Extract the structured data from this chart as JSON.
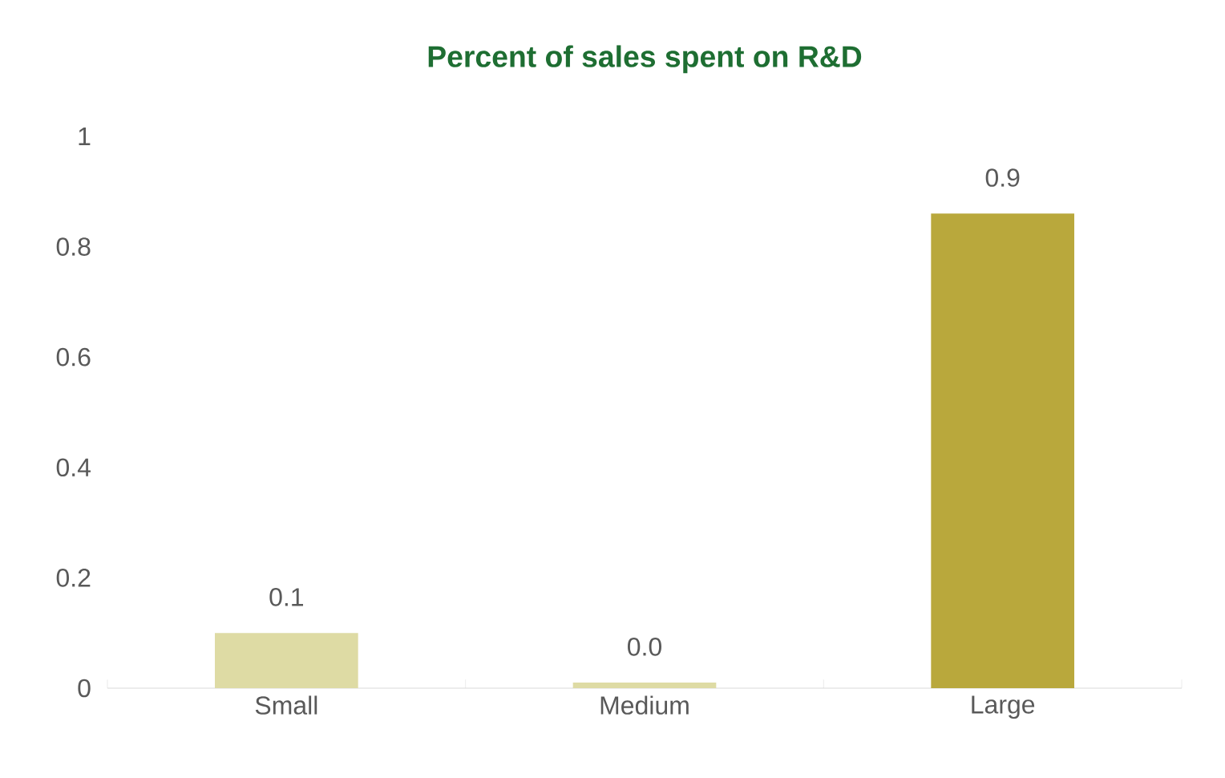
{
  "chart_data": {
    "type": "bar",
    "title": "Percent of sales spent on R&D",
    "categories": [
      "Small",
      "Medium",
      "Large"
    ],
    "values": [
      0.1,
      0.01,
      0.86
    ],
    "colors": [
      "#dedba4",
      "#dedba4",
      "#b9a83c"
    ],
    "value_labels": [
      "0.1",
      "0.0",
      "0.9"
    ],
    "ylim": [
      0,
      1
    ],
    "yticks": [
      0,
      0.2,
      0.4,
      0.6,
      0.8,
      1
    ]
  }
}
